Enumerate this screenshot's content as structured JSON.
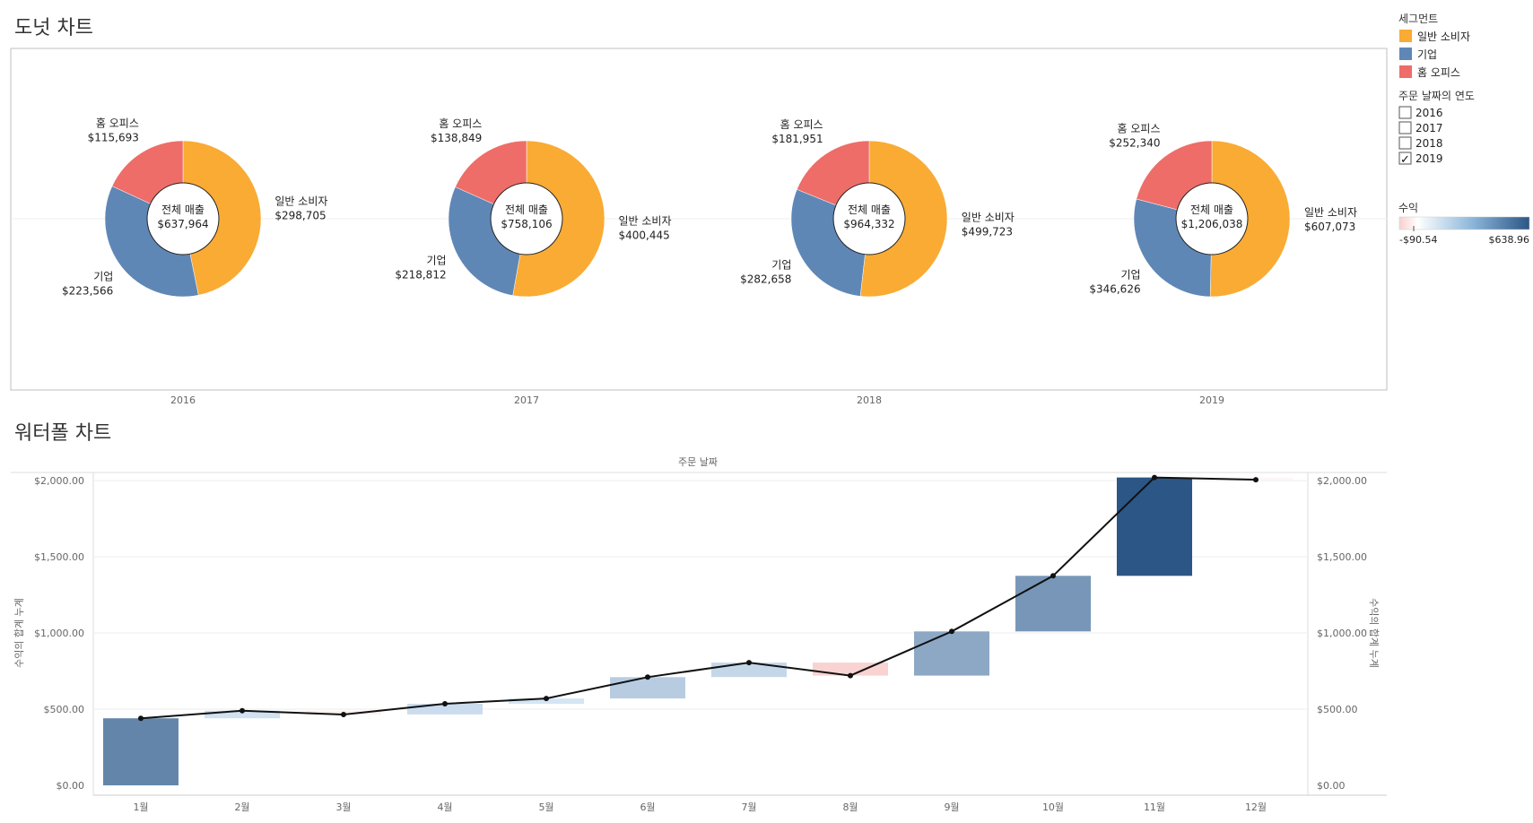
{
  "colors": {
    "consumer": "#F9AB34",
    "corporate": "#5F87B6",
    "home_office": "#EE6D68",
    "panel_border": "#BFBFBF",
    "line": "#111111"
  },
  "donut_title": "도넛 차트",
  "waterfall_title": "워터폴 차트",
  "legend": {
    "segment_title": "세그먼트",
    "segments": [
      "일반 소비자",
      "기업",
      "홈 오피스"
    ],
    "year_filter_title": "주문 날짜의 연도",
    "years": [
      {
        "label": "2016",
        "checked": false
      },
      {
        "label": "2017",
        "checked": false
      },
      {
        "label": "2018",
        "checked": false
      },
      {
        "label": "2019",
        "checked": true
      }
    ],
    "profit_title": "수익",
    "profit_min": "-$90.54",
    "profit_max": "$638.96",
    "check_mark": "✓"
  },
  "chart_data": [
    {
      "type": "pie",
      "center_label": "전체 매출",
      "donuts": [
        {
          "year": "2016",
          "total_label": "$637,964",
          "total": 637964,
          "slices": [
            {
              "name": "일반 소비자",
              "value": 298705,
              "value_label": "$298,705"
            },
            {
              "name": "기업",
              "value": 223566,
              "value_label": "$223,566"
            },
            {
              "name": "홈 오피스",
              "value": 115693,
              "value_label": "$115,693"
            }
          ]
        },
        {
          "year": "2017",
          "total_label": "$758,106",
          "total": 758106,
          "slices": [
            {
              "name": "일반 소비자",
              "value": 400445,
              "value_label": "$400,445"
            },
            {
              "name": "기업",
              "value": 218812,
              "value_label": "$218,812"
            },
            {
              "name": "홈 오피스",
              "value": 138849,
              "value_label": "$138,849"
            }
          ]
        },
        {
          "year": "2018",
          "total_label": "$964,332",
          "total": 964332,
          "slices": [
            {
              "name": "일반 소비자",
              "value": 499723,
              "value_label": "$499,723"
            },
            {
              "name": "기업",
              "value": 282658,
              "value_label": "$282,658"
            },
            {
              "name": "홈 오피스",
              "value": 181951,
              "value_label": "$181,951"
            }
          ]
        },
        {
          "year": "2019",
          "total_label": "$1,206,038",
          "total": 1206038,
          "slices": [
            {
              "name": "일반 소비자",
              "value": 607073,
              "value_label": "$607,073"
            },
            {
              "name": "기업",
              "value": 346626,
              "value_label": "$346,626"
            },
            {
              "name": "홈 오피스",
              "value": 252340,
              "value_label": "$252,340"
            }
          ]
        }
      ]
    },
    {
      "type": "bar",
      "subtype": "waterfall",
      "xlabel": "주문 날짜",
      "ylabel": "수익의 합계 누계",
      "ylim": [
        0,
        2000
      ],
      "yticks": [
        "$0.00",
        "$500.00",
        "$1,000.00",
        "$1,500.00",
        "$2,000.00"
      ],
      "ytick_values": [
        0,
        500,
        1000,
        1500,
        2000
      ],
      "categories": [
        "1월",
        "2월",
        "3월",
        "4월",
        "5월",
        "6월",
        "7월",
        "8월",
        "9월",
        "10월",
        "11월",
        "12월"
      ],
      "running_total": [
        440,
        490,
        465,
        535,
        570,
        710,
        805,
        720,
        1010,
        1375,
        2020,
        2005
      ],
      "monthly_profit": [
        440,
        50,
        -25,
        70,
        35,
        140,
        95,
        -85,
        290,
        365,
        645,
        -15
      ]
    }
  ]
}
